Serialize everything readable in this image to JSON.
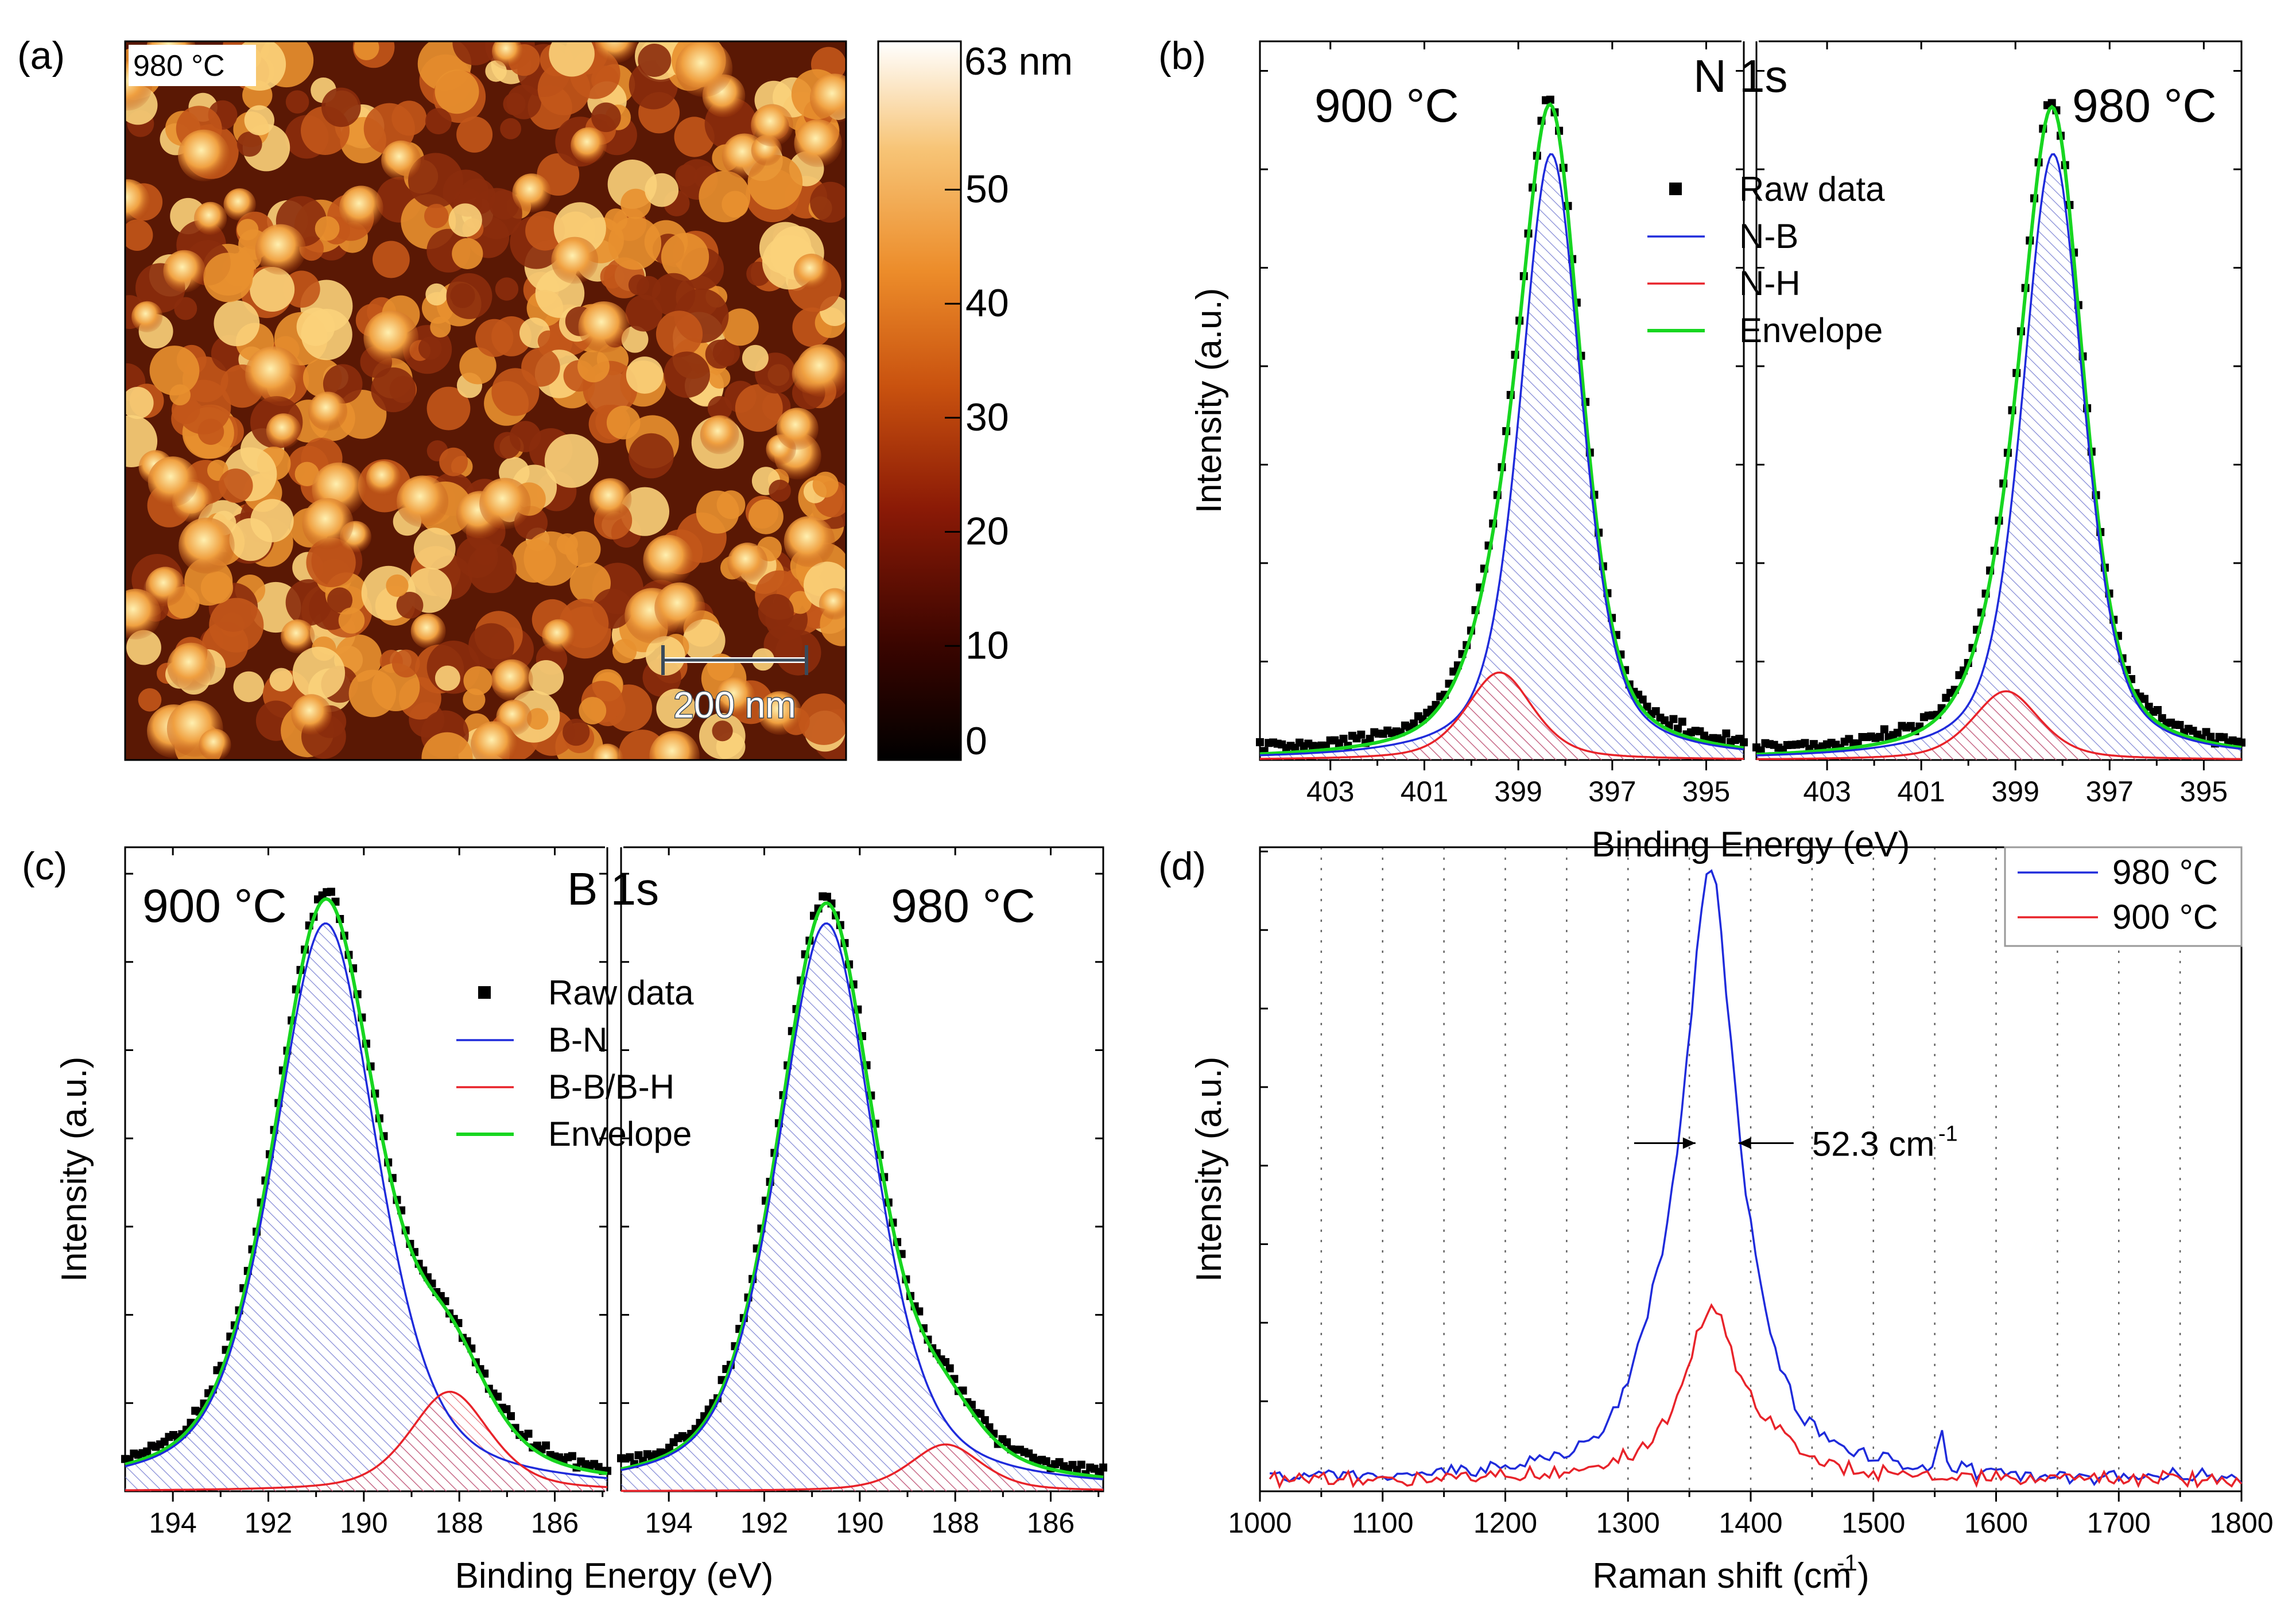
{
  "figure": {
    "panel_labels": [
      "(a)",
      "(b)",
      "(c)",
      "(d)"
    ],
    "colors": {
      "blue": "#1f2bdb",
      "red": "#e8232a",
      "green": "#17d620",
      "black": "#000000",
      "hatch_blue": "#5a62c8",
      "hatch_red": "#e0525e"
    }
  },
  "afm": {
    "temp_label": "980 °C",
    "scalebar_label": "200 nm",
    "colorbar_top_label": "63 nm",
    "colorbar_ticks": [
      "50",
      "40",
      "30",
      "20",
      "10",
      "0"
    ],
    "colorbar_tick_values": [
      50,
      40,
      30,
      20,
      10,
      0
    ],
    "colorbar_max": 63,
    "colorbar_stops": [
      "#000000",
      "#3a0500",
      "#8b1a06",
      "#c9520f",
      "#ec8c2a",
      "#f7c476",
      "#ffffff"
    ]
  },
  "chart_data": [
    {
      "id": "b",
      "type": "line",
      "title": "N 1s",
      "xlabel": "Binding Energy (eV)",
      "ylabel": "Intensity (a.u.)",
      "xlim_reversed": [
        404.5,
        394.2
      ],
      "xticks": [
        403,
        401,
        399,
        397,
        395
      ],
      "ylim": [
        0,
        1.15
      ],
      "legend": [
        "Raw data",
        "N-B",
        "N-H",
        "Envelope"
      ],
      "subpanels": [
        {
          "label": "900 °C",
          "peak_main": {
            "center": 398.3,
            "height": 1.0,
            "width": 0.78,
            "component": "N-B"
          },
          "peak_minor": {
            "center": 399.4,
            "height": 0.14,
            "width": 0.85,
            "component": "N-H"
          }
        },
        {
          "label": "980 °C",
          "peak_main": {
            "center": 398.2,
            "height": 1.0,
            "width": 0.78,
            "component": "N-B"
          },
          "peak_minor": {
            "center": 399.2,
            "height": 0.11,
            "width": 0.85,
            "component": "N-H"
          }
        }
      ]
    },
    {
      "id": "c",
      "type": "line",
      "title": "B 1s",
      "xlabel": "Binding Energy (eV)",
      "ylabel": "Intensity (a.u.)",
      "xlim_reversed": [
        195,
        184.9
      ],
      "xticks": [
        194,
        192,
        190,
        188,
        186
      ],
      "ylim": [
        0,
        1.1
      ],
      "legend": [
        "Raw data",
        "B-N",
        "B-B/B-H",
        "Envelope"
      ],
      "subpanels": [
        {
          "label": "900 °C",
          "peak_main": {
            "center": 190.8,
            "height": 1.0,
            "width": 1.3,
            "component": "B-N"
          },
          "peak_minor": {
            "center": 188.2,
            "height": 0.17,
            "width": 1.0,
            "component": "B-B/B-H"
          }
        },
        {
          "label": "980 °C",
          "peak_main": {
            "center": 190.7,
            "height": 1.0,
            "width": 1.22,
            "component": "B-N"
          },
          "peak_minor": {
            "center": 188.2,
            "height": 0.08,
            "width": 0.9,
            "component": "B-B/B-H"
          }
        }
      ]
    },
    {
      "id": "d",
      "type": "line",
      "xlabel": "Raman shift (cm",
      "xlabel_sup": "-1",
      "xlabel_tail": ")",
      "ylabel": "Intensity (a.u.)",
      "xlim": [
        1000,
        1800
      ],
      "xticks": [
        1000,
        1100,
        1200,
        1300,
        1400,
        1500,
        1600,
        1700,
        1800
      ],
      "gridlines_x": [
        1050,
        1100,
        1150,
        1200,
        1250,
        1300,
        1350,
        1400,
        1450,
        1500,
        1550,
        1600,
        1650,
        1700,
        1750
      ],
      "ylim": [
        0,
        1.1
      ],
      "series": [
        {
          "name": "980 °C",
          "peak_center": 1367,
          "fwhm": 52.3,
          "height": 1.0,
          "baseline": 0.0
        },
        {
          "name": "900 °C",
          "peak_center": 1368,
          "fwhm": 55,
          "height": 0.29,
          "baseline": 0.0
        }
      ],
      "annotation": {
        "text": "52.3 cm",
        "sup": "-1"
      }
    }
  ]
}
